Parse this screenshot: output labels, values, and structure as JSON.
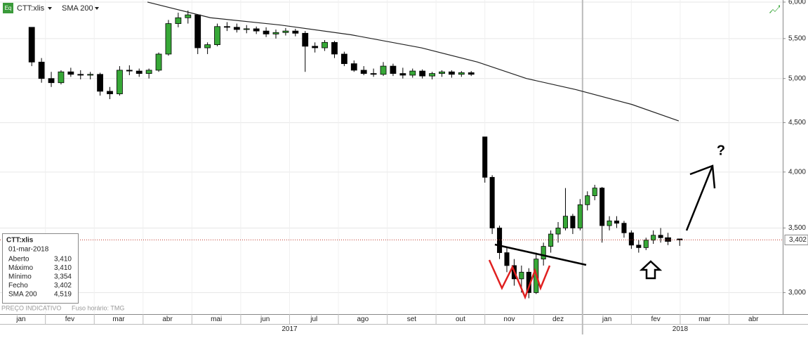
{
  "header": {
    "icon": "Eq",
    "symbol": "CTT:xlis",
    "indicator": "SMA 200"
  },
  "footer": {
    "note": "PREÇO INDICATIVO",
    "timezone": "Fuso horário: TMG"
  },
  "info_box": {
    "title": "CTT:xlis",
    "date": "01-mar-2018",
    "rows": [
      [
        "Aberto",
        "3,410"
      ],
      [
        "Máximo",
        "3,410"
      ],
      [
        "Mínimo",
        "3,354"
      ],
      [
        "Fecho",
        "3,402"
      ],
      [
        "SMA 200",
        "4,519"
      ]
    ]
  },
  "chart_data": {
    "type": "candlestick",
    "log_scale": true,
    "grid": true,
    "up_color": "#37a837",
    "down_color": "#000000",
    "sma_color": "#222222",
    "last_price_color": "#c0392b",
    "annotations": [
      "?"
    ],
    "xlim": [
      0.07,
      16.1
    ],
    "xticks": [
      {
        "value": 0.5,
        "label": "jan"
      },
      {
        "value": 1.5,
        "label": "fev"
      },
      {
        "value": 2.5,
        "label": "mar"
      },
      {
        "value": 3.5,
        "label": "abr"
      },
      {
        "value": 4.5,
        "label": "mai"
      },
      {
        "value": 5.5,
        "label": "jun"
      },
      {
        "value": 6.5,
        "label": "jul"
      },
      {
        "value": 7.5,
        "label": "ago"
      },
      {
        "value": 8.5,
        "label": "set"
      },
      {
        "value": 9.5,
        "label": "out"
      },
      {
        "value": 10.5,
        "label": "nov"
      },
      {
        "value": 11.5,
        "label": "dez"
      },
      {
        "value": 12.5,
        "label": "jan"
      },
      {
        "value": 13.5,
        "label": "fev"
      },
      {
        "value": 14.5,
        "label": "mar"
      },
      {
        "value": 15.5,
        "label": "abr"
      }
    ],
    "years": [
      {
        "value": 6,
        "label": "2017"
      },
      {
        "value": 14,
        "label": "2018"
      }
    ],
    "ylim": [
      2850,
      6030
    ],
    "yticks": [
      {
        "value": 3000,
        "label": "3,000"
      },
      {
        "value": 3500,
        "label": "3,500"
      },
      {
        "value": 4000,
        "label": "4,000"
      },
      {
        "value": 4500,
        "label": "4,500"
      },
      {
        "value": 5000,
        "label": "5,000"
      },
      {
        "value": 5500,
        "label": "5,500"
      },
      {
        "value": 6000,
        "label": "6,000"
      }
    ],
    "last_price": {
      "value": 3402,
      "label": "3,402"
    },
    "x": [
      0.72,
      0.92,
      1.12,
      1.32,
      1.52,
      1.72,
      1.92,
      2.12,
      2.32,
      2.52,
      2.72,
      2.92,
      3.12,
      3.32,
      3.52,
      3.72,
      3.92,
      4.12,
      4.32,
      4.52,
      4.72,
      4.92,
      5.12,
      5.32,
      5.52,
      5.72,
      5.92,
      6.12,
      6.32,
      6.52,
      6.72,
      6.92,
      7.12,
      7.32,
      7.52,
      7.72,
      7.92,
      8.12,
      8.32,
      8.52,
      8.72,
      8.92,
      9.12,
      9.32,
      9.52,
      9.72,
      10.0,
      10.15,
      10.3,
      10.45,
      10.6,
      10.75,
      10.9,
      11.05,
      11.2,
      11.35,
      11.5,
      11.65,
      11.8,
      11.95,
      12.1,
      12.25,
      12.4,
      12.55,
      12.7,
      12.85,
      13.0,
      13.15,
      13.3,
      13.45,
      13.6,
      13.75,
      13.99
    ],
    "open": [
      5650,
      5200,
      5000,
      4950,
      5080,
      5050,
      5040,
      5050,
      4850,
      4820,
      5100,
      5090,
      5060,
      5100,
      5300,
      5700,
      5780,
      5820,
      5380,
      5420,
      5660,
      5650,
      5620,
      5630,
      5600,
      5560,
      5580,
      5600,
      5570,
      5400,
      5380,
      5450,
      5300,
      5180,
      5100,
      5060,
      5050,
      5150,
      5060,
      5040,
      5090,
      5030,
      5060,
      5080,
      5050,
      5070,
      4350,
      3950,
      3500,
      3300,
      3200,
      3100,
      3150,
      3000,
      3250,
      3350,
      3450,
      3500,
      3600,
      3500,
      3700,
      3780,
      3850,
      3520,
      3560,
      3540,
      3460,
      3360,
      3340,
      3400,
      3440,
      3420,
      3410
    ],
    "high": [
      5650,
      5250,
      5080,
      5100,
      5130,
      5100,
      5080,
      5070,
      4900,
      5150,
      5160,
      5120,
      5120,
      5320,
      5750,
      5850,
      5880,
      5830,
      5450,
      5700,
      5720,
      5700,
      5680,
      5660,
      5650,
      5620,
      5640,
      5630,
      5600,
      5450,
      5480,
      5470,
      5330,
      5220,
      5150,
      5120,
      5200,
      5180,
      5130,
      5120,
      5110,
      5080,
      5100,
      5100,
      5090,
      5090,
      4350,
      3970,
      3520,
      3350,
      3250,
      3200,
      3180,
      3300,
      3380,
      3480,
      3550,
      3850,
      3620,
      3750,
      3820,
      3880,
      3860,
      3600,
      3600,
      3560,
      3480,
      3400,
      3420,
      3480,
      3500,
      3460,
      3410
    ],
    "low": [
      5150,
      4950,
      4900,
      4930,
      5020,
      4990,
      4990,
      4800,
      4760,
      4800,
      5040,
      5020,
      5000,
      5080,
      5280,
      5650,
      5700,
      5300,
      5300,
      5400,
      5600,
      5580,
      5570,
      5560,
      5520,
      5500,
      5540,
      5530,
      5080,
      5320,
      5340,
      5250,
      5150,
      5080,
      5040,
      5020,
      5030,
      5030,
      5000,
      5010,
      5000,
      4990,
      5020,
      5010,
      5020,
      5030,
      3900,
      3450,
      3250,
      3150,
      3050,
      3000,
      2960,
      2990,
      3200,
      3300,
      3380,
      3480,
      3450,
      3480,
      3650,
      3740,
      3380,
      3480,
      3500,
      3420,
      3330,
      3300,
      3320,
      3370,
      3380,
      3360,
      3354
    ],
    "close": [
      5200,
      5000,
      4950,
      5080,
      5050,
      5040,
      5050,
      4850,
      4820,
      5100,
      5090,
      5060,
      5100,
      5300,
      5700,
      5780,
      5820,
      5380,
      5420,
      5660,
      5650,
      5620,
      5630,
      5600,
      5560,
      5580,
      5600,
      5570,
      5400,
      5380,
      5450,
      5300,
      5180,
      5100,
      5060,
      5050,
      5150,
      5060,
      5040,
      5090,
      5030,
      5060,
      5080,
      5050,
      5070,
      5050,
      3950,
      3500,
      3300,
      3200,
      3100,
      3150,
      3000,
      3250,
      3350,
      3450,
      3500,
      3600,
      3500,
      3700,
      3780,
      3850,
      3520,
      3560,
      3540,
      3460,
      3360,
      3340,
      3400,
      3440,
      3420,
      3390,
      3402
    ],
    "sma": {
      "name": "SMA 200",
      "x": [
        3.09,
        4.38,
        5.82,
        7.26,
        8.7,
        9.85,
        10.85,
        11.86,
        13.01,
        13.97
      ],
      "values": [
        6000,
        5780,
        5680,
        5550,
        5380,
        5200,
        5000,
        4870,
        4700,
        4519
      ]
    }
  }
}
